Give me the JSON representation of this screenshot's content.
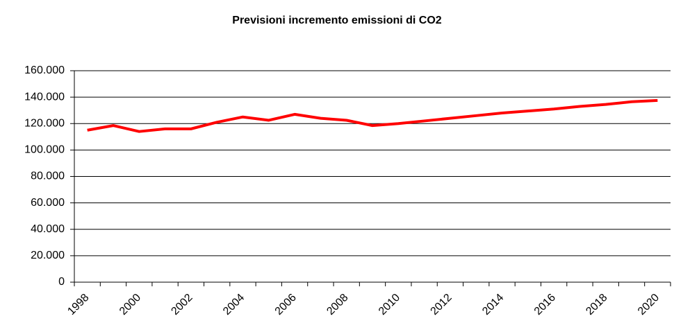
{
  "chart_data": {
    "type": "line",
    "title": "Previsioni incremento emissioni di CO2",
    "categories": [
      "1998",
      null,
      "2000",
      null,
      "2002",
      null,
      "2004",
      null,
      "2006",
      null,
      "2008",
      null,
      "2010",
      null,
      "2012",
      null,
      "2014",
      null,
      "2016",
      null,
      "2018",
      null,
      "2020"
    ],
    "series": [
      {
        "name": "CO2",
        "color": "#ff0000",
        "values": [
          115000,
          118500,
          114000,
          116000,
          116000,
          121000,
          125000,
          122500,
          127000,
          124000,
          122500,
          118500,
          120000,
          122000,
          124000,
          126000,
          128000,
          129500,
          131000,
          133000,
          134500,
          136500,
          137500
        ]
      }
    ],
    "ylim": [
      0,
      160000
    ],
    "yticks": [
      0,
      {
        "value": 20000,
        "label": "20.000"
      },
      {
        "value": 40000,
        "label": "40.000"
      },
      {
        "value": 60000,
        "label": "60.000"
      },
      {
        "value": 80000,
        "label": "80.000"
      },
      {
        "value": 100000,
        "label": "100.000"
      },
      {
        "value": 120000,
        "label": "120.000"
      },
      {
        "value": 140000,
        "label": "140.000"
      },
      {
        "value": 160000,
        "label": "160.000"
      }
    ],
    "grid": true,
    "legend": false
  }
}
